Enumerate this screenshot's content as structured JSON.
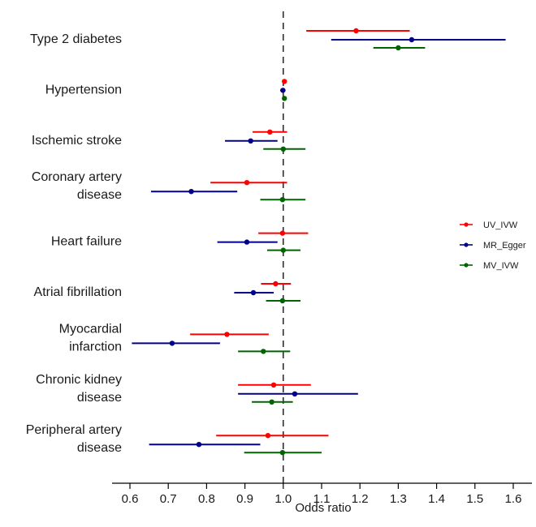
{
  "chart_data": {
    "type": "forest",
    "xlabel": "Odds ratio",
    "xlim": [
      0.55,
      1.65
    ],
    "xticks": [
      0.6,
      0.7,
      0.8,
      0.9,
      1.0,
      1.1,
      1.2,
      1.3,
      1.4,
      1.5,
      1.6
    ],
    "xtick_labels": [
      "0.6",
      "0.7",
      "0.8",
      "0.9",
      "1.0",
      "1.1",
      "1.2",
      "1.3",
      "1.4",
      "1.5",
      "1.6"
    ],
    "reference_line": 1.0,
    "legend_position": "right",
    "series": [
      {
        "name": "UV_IVW",
        "color": "#ff0000"
      },
      {
        "name": "MR_Egger",
        "color": "#00008b"
      },
      {
        "name": "MV_IVW",
        "color": "#006400"
      }
    ],
    "outcomes": [
      {
        "label_lines": [
          "Type 2 diabetes"
        ],
        "estimates": [
          {
            "est": 1.19,
            "lo": 1.06,
            "hi": 1.33
          },
          {
            "est": 1.335,
            "lo": 1.125,
            "hi": 1.58
          },
          {
            "est": 1.3,
            "lo": 1.235,
            "hi": 1.37
          }
        ]
      },
      {
        "label_lines": [
          "Hypertension"
        ],
        "estimates": [
          {
            "est": 1.003,
            "lo": 1.0,
            "hi": 1.006
          },
          {
            "est": 0.999,
            "lo": 0.992,
            "hi": 1.006
          },
          {
            "est": 1.003,
            "lo": 1.0,
            "hi": 1.006
          }
        ]
      },
      {
        "label_lines": [
          "Ischemic stroke"
        ],
        "estimates": [
          {
            "est": 0.965,
            "lo": 0.92,
            "hi": 1.01
          },
          {
            "est": 0.915,
            "lo": 0.848,
            "hi": 0.985
          },
          {
            "est": 1.0,
            "lo": 0.948,
            "hi": 1.058
          }
        ]
      },
      {
        "label_lines": [
          "Coronary artery",
          "disease"
        ],
        "estimates": [
          {
            "est": 0.905,
            "lo": 0.81,
            "hi": 1.01
          },
          {
            "est": 0.76,
            "lo": 0.655,
            "hi": 0.88
          },
          {
            "est": 0.998,
            "lo": 0.94,
            "hi": 1.058
          }
        ]
      },
      {
        "label_lines": [
          "Heart failure"
        ],
        "estimates": [
          {
            "est": 0.998,
            "lo": 0.935,
            "hi": 1.065
          },
          {
            "est": 0.905,
            "lo": 0.828,
            "hi": 0.985
          },
          {
            "est": 1.0,
            "lo": 0.958,
            "hi": 1.045
          }
        ]
      },
      {
        "label_lines": [
          "Atrial fibrillation"
        ],
        "estimates": [
          {
            "est": 0.98,
            "lo": 0.942,
            "hi": 1.02
          },
          {
            "est": 0.922,
            "lo": 0.872,
            "hi": 0.975
          },
          {
            "est": 0.998,
            "lo": 0.955,
            "hi": 1.045
          }
        ]
      },
      {
        "label_lines": [
          "Myocardial",
          "infarction"
        ],
        "estimates": [
          {
            "est": 0.853,
            "lo": 0.757,
            "hi": 0.962
          },
          {
            "est": 0.71,
            "lo": 0.605,
            "hi": 0.835
          },
          {
            "est": 0.948,
            "lo": 0.882,
            "hi": 1.018
          }
        ]
      },
      {
        "label_lines": [
          "Chronic kidney",
          "disease"
        ],
        "estimates": [
          {
            "est": 0.975,
            "lo": 0.882,
            "hi": 1.072
          },
          {
            "est": 1.03,
            "lo": 0.882,
            "hi": 1.195
          },
          {
            "est": 0.97,
            "lo": 0.918,
            "hi": 1.025
          }
        ]
      },
      {
        "label_lines": [
          "Peripheral artery",
          "disease"
        ],
        "estimates": [
          {
            "est": 0.96,
            "lo": 0.825,
            "hi": 1.118
          },
          {
            "est": 0.78,
            "lo": 0.65,
            "hi": 0.94
          },
          {
            "est": 0.998,
            "lo": 0.898,
            "hi": 1.1
          }
        ]
      }
    ]
  }
}
